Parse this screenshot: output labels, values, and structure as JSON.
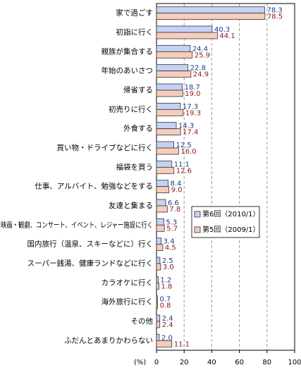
{
  "chart_data": {
    "type": "hbar",
    "x_label": "(%)",
    "categories": [
      "家で過ごす",
      "初詣に行く",
      "親族が集合する",
      "年始のあいさつ",
      "帰省する",
      "初売りに行く",
      "外食する",
      "買い物・ドライブなどに行く",
      "福袋を買う",
      "仕事、アルバイト、勉強などをする",
      "友達と集まる",
      "映画・観劇、コンサート、イベント、レジャー施設に行く",
      "国内旅行（温泉、スキーなどに）行く",
      "スーパー銭湯、健康ランドなどに行く",
      "カラオケに行く",
      "海外旅行に行く",
      "その他",
      "ふだんとあまりかわらない"
    ],
    "series": [
      {
        "name": "第6回（2010/1）",
        "color": "#c5d2f4",
        "label_color": "#1f3a8a",
        "values": [
          78.3,
          40.3,
          24.4,
          22.8,
          18.7,
          17.3,
          14.3,
          12.5,
          11.1,
          8.4,
          6.6,
          5.3,
          3.4,
          2.5,
          1.2,
          0.7,
          2.4,
          2.0
        ],
        "value_labels": [
          "78.3",
          "40.3",
          "24.4",
          "22.8",
          "18.7",
          "17.3",
          "14.3",
          "12.5",
          "11.1",
          "8.4",
          "6.6",
          "5.3",
          "3.4",
          "2.5",
          "1.2",
          "0.7",
          "2.4",
          "2.0"
        ]
      },
      {
        "name": "第5回（2009/1）",
        "color": "#f6cdbd",
        "label_color": "#8b1a1a",
        "values": [
          78.5,
          44.1,
          25.9,
          24.9,
          19.0,
          19.3,
          17.4,
          16.0,
          12.6,
          9.0,
          7.8,
          5.7,
          4.5,
          3.0,
          1.8,
          0.8,
          2.4,
          11.1
        ],
        "value_labels": [
          "78.5",
          "44.1",
          "25.9",
          "24.9",
          "19.0",
          "19.3",
          "17.4",
          "16.0",
          "12.6",
          "9.0",
          "7.8",
          "5.7",
          "4.5",
          "3.0",
          "1.8",
          "0.8",
          "2.4",
          "11.1"
        ]
      }
    ],
    "xlim": [
      0,
      100
    ],
    "xticks": [
      0,
      20,
      40,
      60,
      80,
      100
    ],
    "grid": true,
    "legend": "center right"
  }
}
